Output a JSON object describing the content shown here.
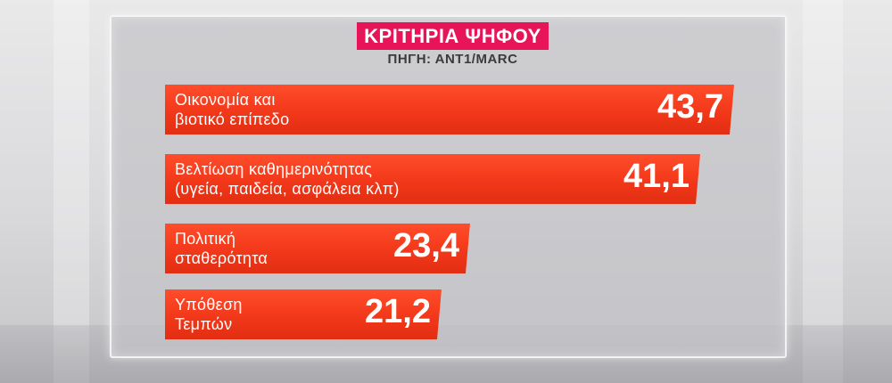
{
  "chart_data": {
    "type": "bar",
    "orientation": "horizontal",
    "title": "ΚΡΙΤΗΡΙΑ ΨΗΦΟΥ",
    "subtitle": "ΠΗΓΗ: ΑΝΤ1/MARC",
    "categories": [
      [
        "Οικονομία και",
        "βιοτικό επίπεδο"
      ],
      [
        "Βελτίωση καθημερινότητας",
        "(υγεία, παιδεία, ασφάλεια κλπ)"
      ],
      [
        "Πολιτική",
        "σταθερότητα"
      ],
      [
        "Υπόθεση",
        "Τεμπών"
      ]
    ],
    "values": [
      43.7,
      41.1,
      23.4,
      21.2
    ],
    "value_labels": [
      "43,7",
      "41,1",
      "23,4",
      "21,2"
    ],
    "bar_color": "#f2381a",
    "title_bg_color": "#e8145a",
    "grid": false,
    "legend": "none"
  }
}
